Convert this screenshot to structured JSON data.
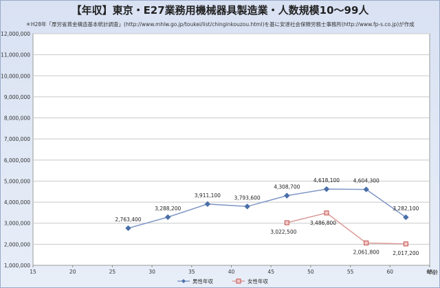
{
  "chart_data": {
    "type": "line",
    "title": "【年収】東京・E27業務用機械器具製造業・人数規模10～99人",
    "subtitle": "＊H28年「厚労省賃金構造基本統計調査」(http://www.mhlw.go.jp/toukei/list/chinginkouzou.html)を基に安達社会保険労務士事務所(http://www.fp-s.co.jp)が作成",
    "xlabel": "年齢",
    "ylabel": "",
    "xlim": [
      15,
      65
    ],
    "ylim": [
      1000000,
      12000000
    ],
    "x_ticks": [
      15,
      20,
      25,
      30,
      35,
      40,
      45,
      50,
      55,
      60,
      65
    ],
    "y_ticks": [
      1000000,
      2000000,
      3000000,
      4000000,
      5000000,
      6000000,
      7000000,
      8000000,
      9000000,
      10000000,
      11000000,
      12000000
    ],
    "y_tick_labels": [
      "1,000,000",
      "2,000,000",
      "3,000,000",
      "4,000,000",
      "5,000,000",
      "6,000,000",
      "7,000,000",
      "8,000,000",
      "9,000,000",
      "10,000,000",
      "11,000,000",
      "12,000,000"
    ],
    "grid": true,
    "legend_position": "bottom",
    "series": [
      {
        "name": "男性年収",
        "color": "#4a6fa8",
        "marker": "diamond",
        "points": [
          {
            "x": 27,
            "y": 2763400,
            "label": "2,763,400"
          },
          {
            "x": 32,
            "y": 3288200,
            "label": "3,288,200"
          },
          {
            "x": 37,
            "y": 3911100,
            "label": "3,911,100"
          },
          {
            "x": 42,
            "y": 3793600,
            "label": "3,793,600"
          },
          {
            "x": 47,
            "y": 4308700,
            "label": "4,308,700"
          },
          {
            "x": 52,
            "y": 4618100,
            "label": "4,618,100"
          },
          {
            "x": 57,
            "y": 4604300,
            "label": "4,604,300"
          },
          {
            "x": 62,
            "y": 3282100,
            "label": "3,282,100"
          }
        ]
      },
      {
        "name": "女性年収",
        "color": "#c0504d",
        "marker": "square",
        "points": [
          {
            "x": 47,
            "y": 3022500,
            "label": "3,022,500"
          },
          {
            "x": 52,
            "y": 3486800,
            "label": "3,486,800"
          },
          {
            "x": 57,
            "y": 2061800,
            "label": "2,061,800"
          },
          {
            "x": 62,
            "y": 2017200,
            "label": "2,017,200"
          }
        ]
      }
    ]
  }
}
